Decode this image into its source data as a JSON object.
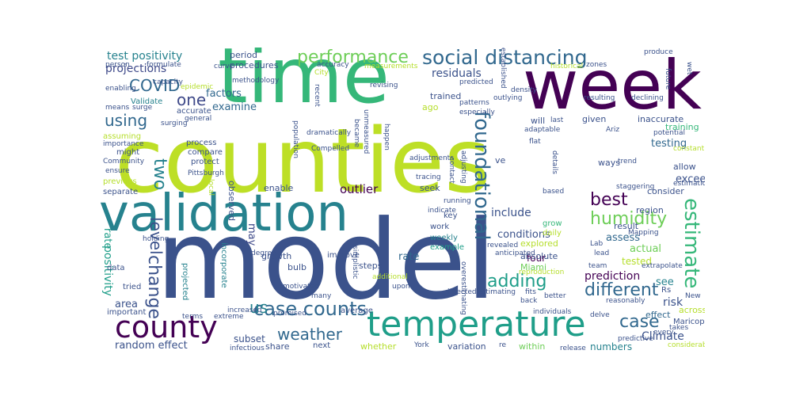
{
  "words": [
    {
      "text": "model",
      "color": "#3b528b"
    },
    {
      "text": "counties",
      "color": "#bddf26"
    },
    {
      "text": "time",
      "color": "#35b779"
    },
    {
      "text": "week",
      "color": "#440154"
    },
    {
      "text": "validation",
      "color": "#26828e"
    },
    {
      "text": "temperature",
      "color": "#1f9e89"
    },
    {
      "text": "county",
      "color": "#440154"
    },
    {
      "text": "social distancing",
      "color": "#31688e"
    },
    {
      "text": "performance",
      "color": "#6ece58"
    },
    {
      "text": "foundational",
      "color": "#31688e"
    },
    {
      "text": "estimate",
      "color": "#35b779"
    },
    {
      "text": "case counts",
      "color": "#31688e"
    },
    {
      "text": "weather",
      "color": "#31688e"
    },
    {
      "text": "case",
      "color": "#31688e"
    },
    {
      "text": "humidity",
      "color": "#6ece58"
    },
    {
      "text": "different",
      "color": "#31688e"
    },
    {
      "text": "adding",
      "color": "#1f9e89"
    },
    {
      "text": "best",
      "color": "#440154"
    },
    {
      "text": "COVID",
      "color": "#31688e"
    },
    {
      "text": "using",
      "color": "#31688e"
    },
    {
      "text": "one",
      "color": "#3e4989"
    },
    {
      "text": "two",
      "color": "#26828e"
    },
    {
      "text": "change",
      "color": "#3b528b"
    },
    {
      "text": "level",
      "color": "#3b528b"
    },
    {
      "text": "us",
      "color": "#26828e"
    },
    {
      "text": "test positivity",
      "color": "#26828e"
    },
    {
      "text": "projections",
      "color": "#3e4989"
    },
    {
      "text": "positivity",
      "color": "#1f9e89"
    },
    {
      "text": "rate",
      "color": "#1f9e89"
    },
    {
      "text": "residuals",
      "color": "#3b528b"
    },
    {
      "text": "outlier",
      "color": "#440154"
    },
    {
      "text": "include",
      "color": "#3b528b"
    },
    {
      "text": "prediction",
      "color": "#440154"
    },
    {
      "text": "Climate",
      "color": "#3b528b"
    },
    {
      "text": "random effect",
      "color": "#3b528b"
    },
    {
      "text": "factors",
      "color": "#31688e"
    },
    {
      "text": "examine",
      "color": "#31688e"
    },
    {
      "text": "testing",
      "color": "#31688e"
    },
    {
      "text": "conditions",
      "color": "#3b528b"
    },
    {
      "text": "risk",
      "color": "#3b528b"
    },
    {
      "text": "actual",
      "color": "#6ece58"
    },
    {
      "text": "assess",
      "color": "#31688e"
    },
    {
      "text": "exceed",
      "color": "#3b528b"
    },
    {
      "text": "area",
      "color": "#3b528b"
    },
    {
      "text": "rate",
      "color": "#31688e"
    },
    {
      "text": "subset",
      "color": "#3b528b"
    },
    {
      "text": "share",
      "color": "#3b528b"
    },
    {
      "text": "variation",
      "color": "#3b528b"
    },
    {
      "text": "numbers",
      "color": "#26828e"
    },
    {
      "text": "within",
      "color": "#6ece58"
    },
    {
      "text": "whether",
      "color": "#b5de2b"
    },
    {
      "text": "four",
      "color": "#440154"
    },
    {
      "text": "see",
      "color": "#26828e"
    },
    {
      "text": "tested",
      "color": "#b5de2b"
    },
    {
      "text": "effect",
      "color": "#31688e"
    },
    {
      "text": "across",
      "color": "#b5de2b"
    },
    {
      "text": "Maricopa",
      "color": "#3b528b"
    },
    {
      "text": "Rs",
      "color": "#3b528b"
    },
    {
      "text": "Miami",
      "color": "#6ece58"
    },
    {
      "text": "explored",
      "color": "#b5de2b"
    },
    {
      "text": "absolute",
      "color": "#3b528b"
    },
    {
      "text": "growth",
      "color": "#3b528b"
    },
    {
      "text": "steps",
      "color": "#3b528b"
    },
    {
      "text": "bulb",
      "color": "#3b528b"
    },
    {
      "text": "may",
      "color": "#3e4989"
    },
    {
      "text": "enable",
      "color": "#3b528b"
    },
    {
      "text": "seek",
      "color": "#3b528b"
    },
    {
      "text": "ways",
      "color": "#3b528b"
    },
    {
      "text": "result",
      "color": "#3b528b"
    },
    {
      "text": "region",
      "color": "#3b528b"
    },
    {
      "text": "consider",
      "color": "#3b528b"
    },
    {
      "text": "allow",
      "color": "#3b528b"
    },
    {
      "text": "training",
      "color": "#35b779"
    },
    {
      "text": "inaccurate",
      "color": "#3b528b"
    },
    {
      "text": "will",
      "color": "#3b528b"
    },
    {
      "text": "ve",
      "color": "#3b528b"
    },
    {
      "text": "given",
      "color": "#3b528b"
    },
    {
      "text": "ago",
      "color": "#b5de2b"
    },
    {
      "text": "trained",
      "color": "#3b528b"
    },
    {
      "text": "period",
      "color": "#3b528b"
    },
    {
      "text": "procedures",
      "color": "#3b528b"
    },
    {
      "text": "Validate",
      "color": "#26828e"
    },
    {
      "text": "accurate",
      "color": "#3b528b"
    },
    {
      "text": "process",
      "color": "#3b528b"
    },
    {
      "text": "compare",
      "color": "#3b528b"
    },
    {
      "text": "protect",
      "color": "#3b528b"
    },
    {
      "text": "might",
      "color": "#3b528b"
    },
    {
      "text": "assuming",
      "color": "#b5de2b"
    },
    {
      "text": "previous",
      "color": "#b5de2b"
    },
    {
      "text": "separate",
      "color": "#3b528b"
    },
    {
      "text": "important",
      "color": "#3b528b"
    },
    {
      "text": "tried",
      "color": "#3b528b"
    },
    {
      "text": "data",
      "color": "#3b528b"
    },
    {
      "text": "key",
      "color": "#3b528b"
    },
    {
      "text": "work",
      "color": "#3b528b"
    },
    {
      "text": "grow",
      "color": "#35b779"
    },
    {
      "text": "daily",
      "color": "#b5de2b"
    },
    {
      "text": "weekly",
      "color": "#26828e"
    },
    {
      "text": "example",
      "color": "#1f9e89"
    },
    {
      "text": "improve",
      "color": "#3b528b"
    },
    {
      "text": "average",
      "color": "#3b528b"
    },
    {
      "text": "next",
      "color": "#3b528b"
    },
    {
      "text": "observed",
      "color": "#3b528b"
    },
    {
      "text": "incorporate",
      "color": "#26828e"
    },
    {
      "text": "projected",
      "color": "#26828e"
    },
    {
      "text": "Ariz",
      "color": "#3b528b"
    },
    {
      "text": "trend",
      "color": "#3b528b"
    },
    {
      "text": "staggering",
      "color": "#3b528b"
    },
    {
      "text": "capacity",
      "color": "#3b528b"
    },
    {
      "text": "formulate",
      "color": "#3b528b"
    },
    {
      "text": "epidemic",
      "color": "#b5de2b"
    },
    {
      "text": "curve",
      "color": "#3b528b"
    },
    {
      "text": "accuracy",
      "color": "#3b528b"
    },
    {
      "text": "methodology",
      "color": "#3b528b"
    },
    {
      "text": "measurements",
      "color": "#b5de2b"
    },
    {
      "text": "historical",
      "color": "#b5de2b"
    },
    {
      "text": "produce",
      "color": "#3b528b"
    },
    {
      "text": "zones",
      "color": "#3b528b"
    },
    {
      "text": "wet",
      "color": "#3b528b"
    },
    {
      "text": "future",
      "color": "#3b528b"
    },
    {
      "text": "declining",
      "color": "#3b528b"
    },
    {
      "text": "resulting",
      "color": "#3b528b"
    },
    {
      "text": "potential",
      "color": "#3b528b"
    },
    {
      "text": "constant",
      "color": "#b5de2b"
    },
    {
      "text": "estimation",
      "color": "#3b528b"
    },
    {
      "text": "Mapping",
      "color": "#3b528b"
    },
    {
      "text": "extrapolate",
      "color": "#3b528b"
    },
    {
      "text": "reproduction",
      "color": "#b5de2b"
    },
    {
      "text": "team",
      "color": "#3b528b"
    },
    {
      "text": "New",
      "color": "#3b528b"
    },
    {
      "text": "better",
      "color": "#3b528b"
    },
    {
      "text": "fits",
      "color": "#3b528b"
    },
    {
      "text": "back",
      "color": "#3b528b"
    },
    {
      "text": "reasonably",
      "color": "#3b528b"
    },
    {
      "text": "takes",
      "color": "#3b528b"
    },
    {
      "text": "every",
      "color": "#3b528b"
    },
    {
      "text": "predictive",
      "color": "#3b528b"
    },
    {
      "text": "considerable",
      "color": "#b5de2b"
    },
    {
      "text": "release",
      "color": "#3b528b"
    },
    {
      "text": "delve",
      "color": "#3b528b"
    },
    {
      "text": "individuals",
      "color": "#3b528b"
    },
    {
      "text": "re",
      "color": "#3b528b"
    },
    {
      "text": "York",
      "color": "#3b528b"
    },
    {
      "text": "infected",
      "color": "#3b528b"
    },
    {
      "text": "estimating",
      "color": "#3b528b"
    },
    {
      "text": "overestimating",
      "color": "#3b528b"
    },
    {
      "text": "upon",
      "color": "#3b528b"
    },
    {
      "text": "additional",
      "color": "#b5de2b"
    },
    {
      "text": "many",
      "color": "#3b528b"
    },
    {
      "text": "simplistic",
      "color": "#3b528b"
    },
    {
      "text": "motivated",
      "color": "#3b528b"
    },
    {
      "text": "promised",
      "color": "#3b528b"
    },
    {
      "text": "infectious",
      "color": "#3b528b"
    },
    {
      "text": "extreme",
      "color": "#3b528b"
    },
    {
      "text": "increased",
      "color": "#3b528b"
    },
    {
      "text": "terms",
      "color": "#3b528b"
    },
    {
      "text": "degree",
      "color": "#3b528b"
    },
    {
      "text": "holding",
      "color": "#3b528b"
    },
    {
      "text": "local",
      "color": "#b5de2b"
    },
    {
      "text": "Pittsburgh",
      "color": "#3b528b"
    },
    {
      "text": "ensure",
      "color": "#3b528b"
    },
    {
      "text": "Community",
      "color": "#3b528b"
    },
    {
      "text": "importance",
      "color": "#3b528b"
    },
    {
      "text": "person",
      "color": "#3b528b"
    },
    {
      "text": "enabling",
      "color": "#3b528b"
    },
    {
      "text": "means",
      "color": "#3b528b"
    },
    {
      "text": "surge",
      "color": "#3b528b"
    },
    {
      "text": "surging",
      "color": "#3b528b"
    },
    {
      "text": "general",
      "color": "#3b528b"
    },
    {
      "text": "City",
      "color": "#b5de2b"
    },
    {
      "text": "recent",
      "color": "#3b528b"
    },
    {
      "text": "population",
      "color": "#3b528b"
    },
    {
      "text": "dramatically",
      "color": "#3b528b"
    },
    {
      "text": "became",
      "color": "#3b528b"
    },
    {
      "text": "unmeasured",
      "color": "#3b528b"
    },
    {
      "text": "Compelled",
      "color": "#3b528b"
    },
    {
      "text": "happen",
      "color": "#3b528b"
    },
    {
      "text": "adjustments",
      "color": "#3b528b"
    },
    {
      "text": "tracing",
      "color": "#3b528b"
    },
    {
      "text": "contact",
      "color": "#3b528b"
    },
    {
      "text": "adjusting",
      "color": "#3b528b"
    },
    {
      "text": "running",
      "color": "#3b528b"
    },
    {
      "text": "indicate",
      "color": "#3b528b"
    },
    {
      "text": "established",
      "color": "#3b528b"
    },
    {
      "text": "predicted",
      "color": "#3b528b"
    },
    {
      "text": "patterns",
      "color": "#3b528b"
    },
    {
      "text": "especially",
      "color": "#3b528b"
    },
    {
      "text": "density",
      "color": "#3b528b"
    },
    {
      "text": "outlying",
      "color": "#3b528b"
    },
    {
      "text": "adaptable",
      "color": "#3b528b"
    },
    {
      "text": "last",
      "color": "#3b528b"
    },
    {
      "text": "flat",
      "color": "#3b528b"
    },
    {
      "text": "details",
      "color": "#3b528b"
    },
    {
      "text": "based",
      "color": "#3b528b"
    },
    {
      "text": "anticipated",
      "color": "#3b528b"
    },
    {
      "text": "revealed",
      "color": "#3b528b"
    },
    {
      "text": "Lab",
      "color": "#3b528b"
    },
    {
      "text": "lead",
      "color": "#3b528b"
    },
    {
      "text": "revising",
      "color": "#3b528b"
    },
    {
      "text": "s",
      "color": "#3b528b"
    }
  ]
}
